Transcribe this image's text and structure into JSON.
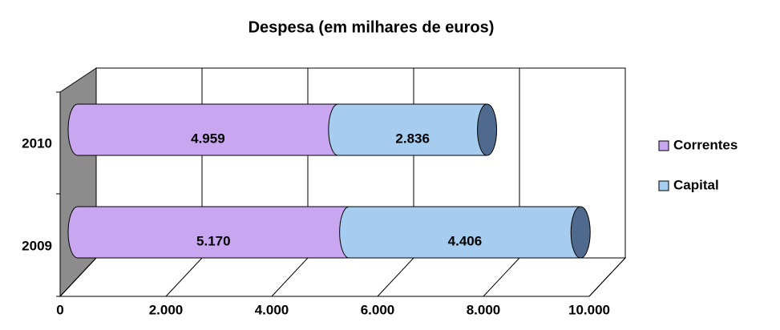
{
  "chart_data": {
    "type": "bar",
    "orientation": "horizontal",
    "stacked": true,
    "title": "Despesa (em milhares de euros)",
    "categories": [
      "2009",
      "2010"
    ],
    "series": [
      {
        "name": "Correntes",
        "color": "#c9a6f0",
        "values": [
          5170,
          4959
        ],
        "value_labels": [
          "5.170",
          "4.959"
        ]
      },
      {
        "name": "Capital",
        "color": "#a6cdf0",
        "values": [
          4406,
          2836
        ],
        "value_labels": [
          "4.406",
          "2.836"
        ]
      }
    ],
    "xlim": [
      0,
      10000
    ],
    "xticks": [
      0,
      {
        "value": 2000,
        "label": "2.000"
      },
      {
        "value": 4000,
        "label": "4.000"
      },
      {
        "value": 6000,
        "label": "6.000"
      },
      {
        "value": 8000,
        "label": "8.000"
      },
      {
        "value": 10000,
        "label": "10.000"
      }
    ],
    "grid": true,
    "legend": "right"
  }
}
